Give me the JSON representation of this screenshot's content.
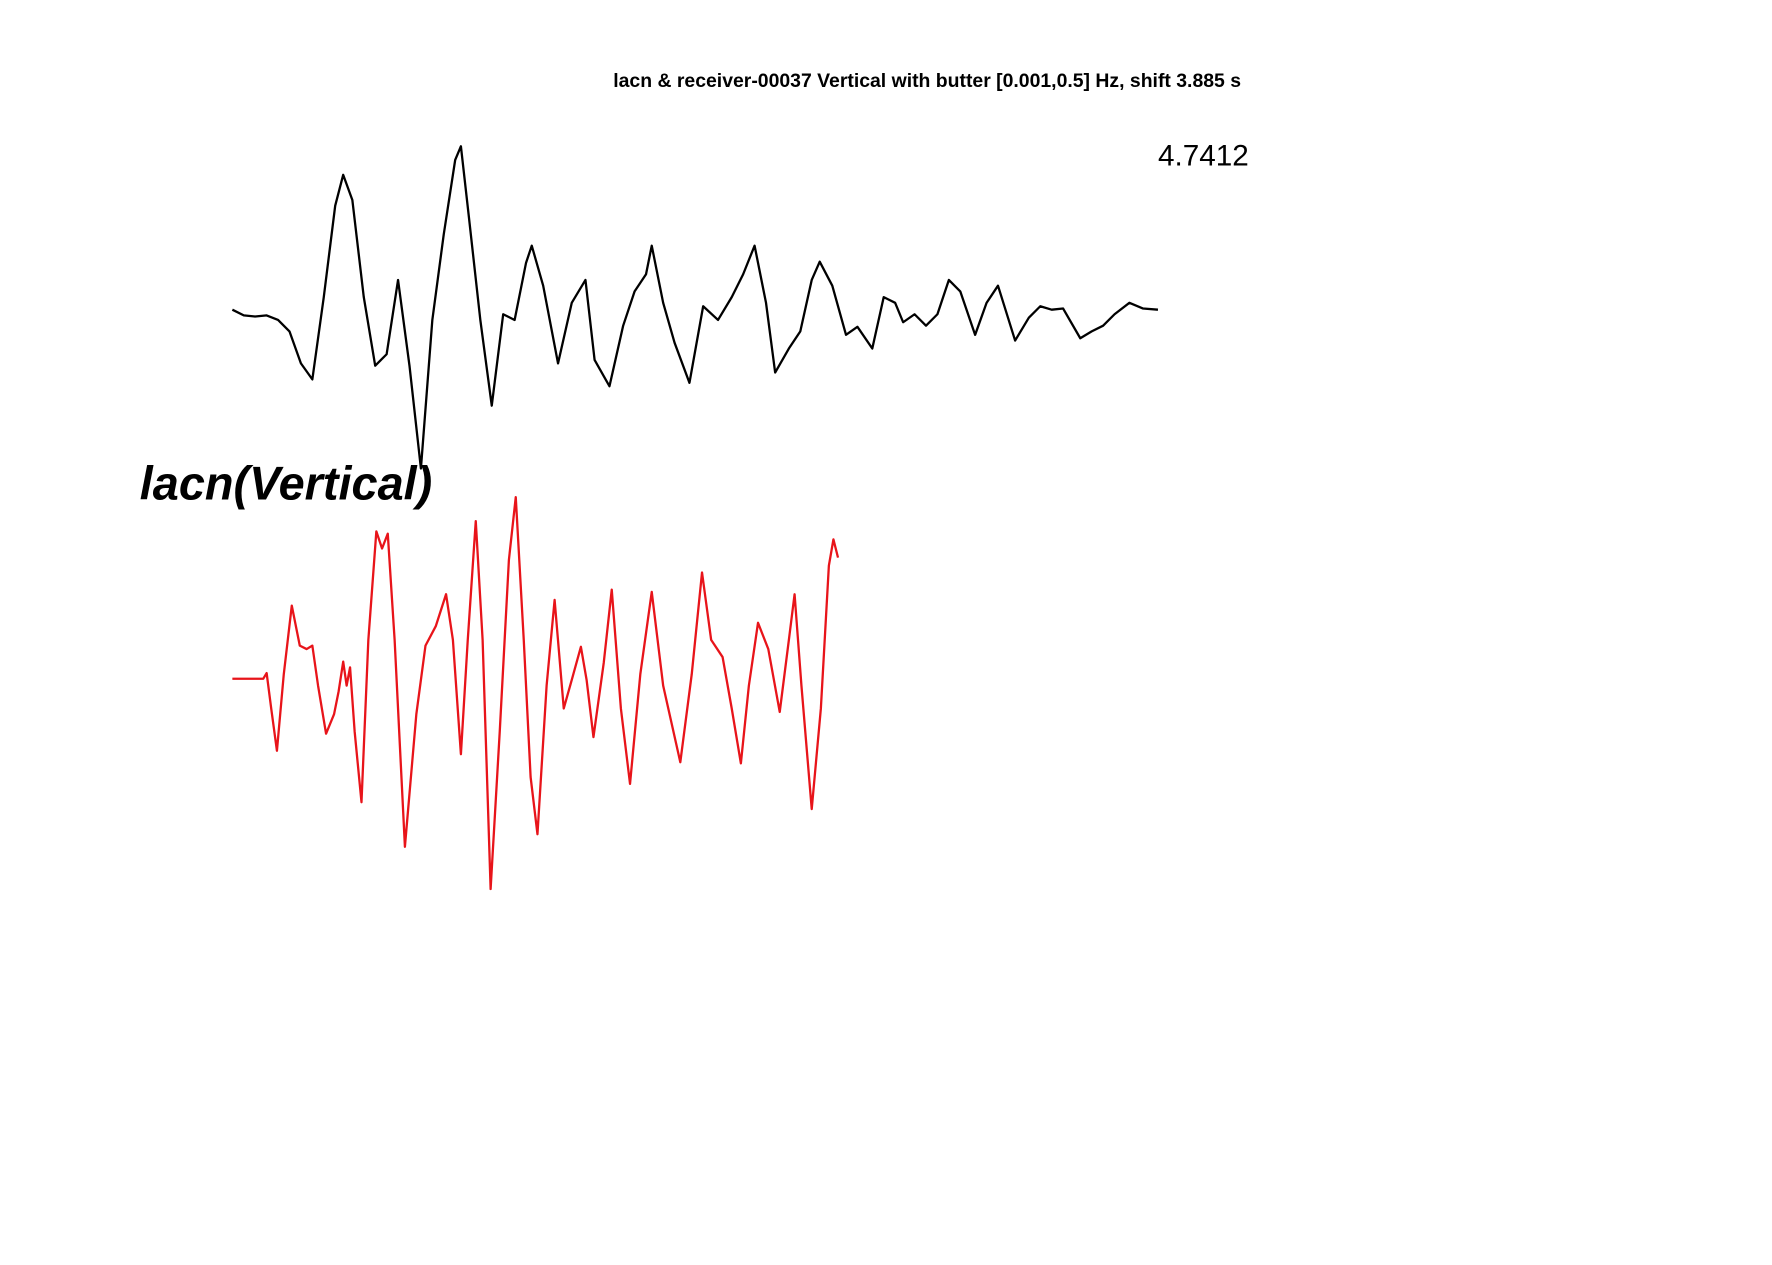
{
  "chart_data": {
    "type": "line",
    "title": "lacn & receiver-00037 Vertical with butter [0.001,0.5] Hz, shift 3.885 s",
    "annotation": "4.7412",
    "trace_label": "lacn(Vertical)",
    "series": [
      {
        "color": "#000000",
        "x": [
          0,
          1,
          2,
          3,
          4,
          5,
          6,
          7,
          8,
          9,
          9.7,
          10.5,
          11.5,
          12.5,
          13.5,
          14.5,
          15.5,
          16.5,
          17.5,
          18.5,
          19.5,
          20,
          20.7,
          21.7,
          22.7,
          23.7,
          24.7,
          25.7,
          26.2,
          27.2,
          28.5,
          29.7,
          30.9,
          31.7,
          33,
          34.2,
          35.2,
          36.2,
          36.7,
          37.7,
          38.7,
          40,
          41.2,
          42.5,
          43.7,
          44.7,
          45.7,
          46.7,
          47.5,
          48.7,
          49.7,
          50.7,
          51.4,
          52.5,
          53.7,
          54.7,
          56,
          57,
          58,
          58.7,
          59.7,
          60.7,
          61.7,
          62.7,
          63.7,
          65,
          66,
          67,
          68.5,
          69.7,
          70.7,
          71.7,
          72.7,
          74.2,
          75.2,
          76.2,
          77.2,
          78.5,
          79.7,
          81
        ],
        "values": [
          0,
          -0.05,
          -0.06,
          -0.05,
          -0.09,
          -0.19,
          -0.47,
          -0.61,
          0.11,
          0.91,
          1.18,
          0.96,
          0.11,
          -0.49,
          -0.39,
          0.26,
          -0.49,
          -1.39,
          -0.09,
          0.66,
          1.31,
          1.43,
          0.81,
          -0.09,
          -0.84,
          -0.04,
          -0.09,
          0.41,
          0.56,
          0.21,
          -0.47,
          0.06,
          0.26,
          -0.44,
          -0.67,
          -0.14,
          0.16,
          0.31,
          0.56,
          0.06,
          -0.29,
          -0.64,
          0.03,
          -0.09,
          0.11,
          0.31,
          0.56,
          0.06,
          -0.55,
          -0.34,
          -0.19,
          0.26,
          0.42,
          0.21,
          -0.22,
          -0.15,
          -0.34,
          0.11,
          0.06,
          -0.11,
          -0.04,
          -0.14,
          -0.04,
          0.26,
          0.16,
          -0.22,
          0.06,
          0.21,
          -0.27,
          -0.07,
          0.03,
          0,
          0.01,
          -0.25,
          -0.19,
          -0.14,
          -0.04,
          0.06,
          0.01,
          0
        ]
      },
      {
        "color": "#e8141a",
        "x": [
          0,
          2.7,
          3,
          3.4,
          3.9,
          4.5,
          5.2,
          5.9,
          6.5,
          7,
          7.5,
          8.2,
          8.9,
          9.3,
          9.7,
          10,
          10.3,
          10.7,
          11.3,
          11.9,
          12.6,
          13.1,
          13.6,
          14.2,
          15.1,
          16.1,
          16.9,
          17.8,
          18.7,
          19.3,
          20,
          20.6,
          21.3,
          21.9,
          22.6,
          23.4,
          24.2,
          24.8,
          25.5,
          26.1,
          26.7,
          27.5,
          28.2,
          29,
          29.7,
          30.5,
          31,
          31.6,
          32.5,
          33.2,
          34,
          34.8,
          35.7,
          36.7,
          37.7,
          39.2,
          40.2,
          41.1,
          41.9,
          42.9,
          43.7,
          44.5,
          45.2,
          46,
          46.9,
          47.9,
          48.7,
          49.2,
          49.8,
          50.7,
          51.5,
          52.2,
          52.6,
          53
        ],
        "values": [
          0,
          0,
          0.05,
          -0.26,
          -0.63,
          0.04,
          0.64,
          0.29,
          0.26,
          0.29,
          -0.06,
          -0.48,
          -0.31,
          -0.11,
          0.15,
          -0.06,
          0.1,
          -0.46,
          -1.08,
          0.34,
          1.29,
          1.14,
          1.27,
          0.34,
          -1.47,
          -0.31,
          0.29,
          0.46,
          0.74,
          0.34,
          -0.66,
          0.34,
          1.38,
          0.34,
          -1.84,
          -0.46,
          1.04,
          1.59,
          0.34,
          -0.86,
          -1.36,
          -0.06,
          0.69,
          -0.26,
          -0.01,
          0.28,
          -0.01,
          -0.51,
          0.14,
          0.78,
          -0.26,
          -0.92,
          0.04,
          0.76,
          -0.06,
          -0.73,
          0.04,
          0.93,
          0.34,
          0.19,
          -0.26,
          -0.74,
          -0.06,
          0.49,
          0.26,
          -0.29,
          0.34,
          0.74,
          -0.06,
          -1.14,
          -0.26,
          0.99,
          1.22,
          1.06
        ]
      }
    ]
  }
}
